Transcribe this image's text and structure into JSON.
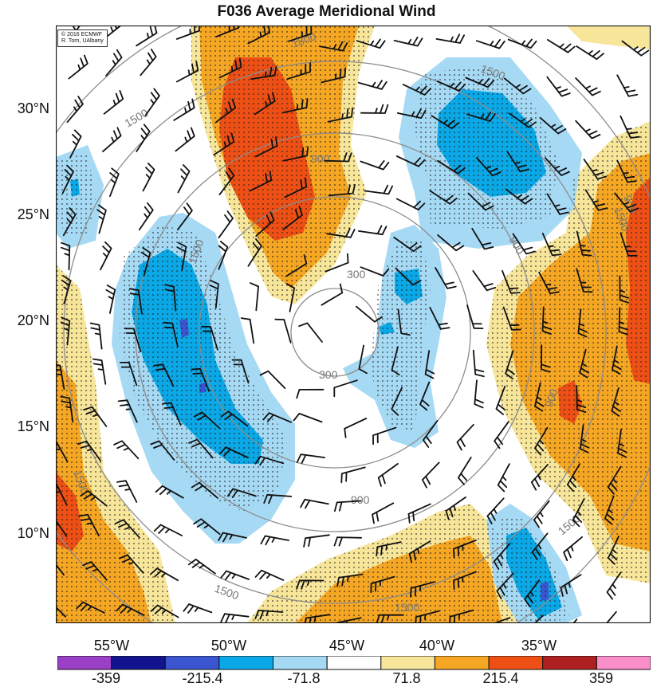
{
  "title": "F036 Average Meridional Wind",
  "credit": [
    "© 2016 ECMWF",
    "R. Torn, UAlbany"
  ],
  "lat_labels": [
    "30°N",
    "25°N",
    "20°N",
    "15°N",
    "10°N"
  ],
  "lon_labels": [
    "55°W",
    "50°W",
    "45°W",
    "40°W",
    "35°W"
  ],
  "colorbar": {
    "colors": [
      "#9b3fc7",
      "#11138f",
      "#3a55cf",
      "#0aa8e6",
      "#a6d9f4",
      "#ffffff",
      "#f7e69a",
      "#f5a623",
      "#ee4f14",
      "#ae1f1f",
      "#fa8ec9"
    ],
    "labels": [
      "-359",
      "-215.4",
      "-71.8",
      "71.8",
      "215.4",
      "359"
    ]
  },
  "contour_labels": [
    "1800",
    "1500",
    "1500",
    "900",
    "900",
    "300",
    "300",
    "900",
    "1500",
    "900",
    "900",
    "1500",
    "1500",
    "1500",
    "1500",
    "1500"
  ],
  "colors": {
    "light_blue": "#a6d9f4",
    "blue": "#0aa8e6",
    "dark_blue": "#3a55cf",
    "yellow": "#f7e69a",
    "orange": "#f5a623",
    "red": "#ee4f14",
    "contour": "#8c8c8c"
  }
}
